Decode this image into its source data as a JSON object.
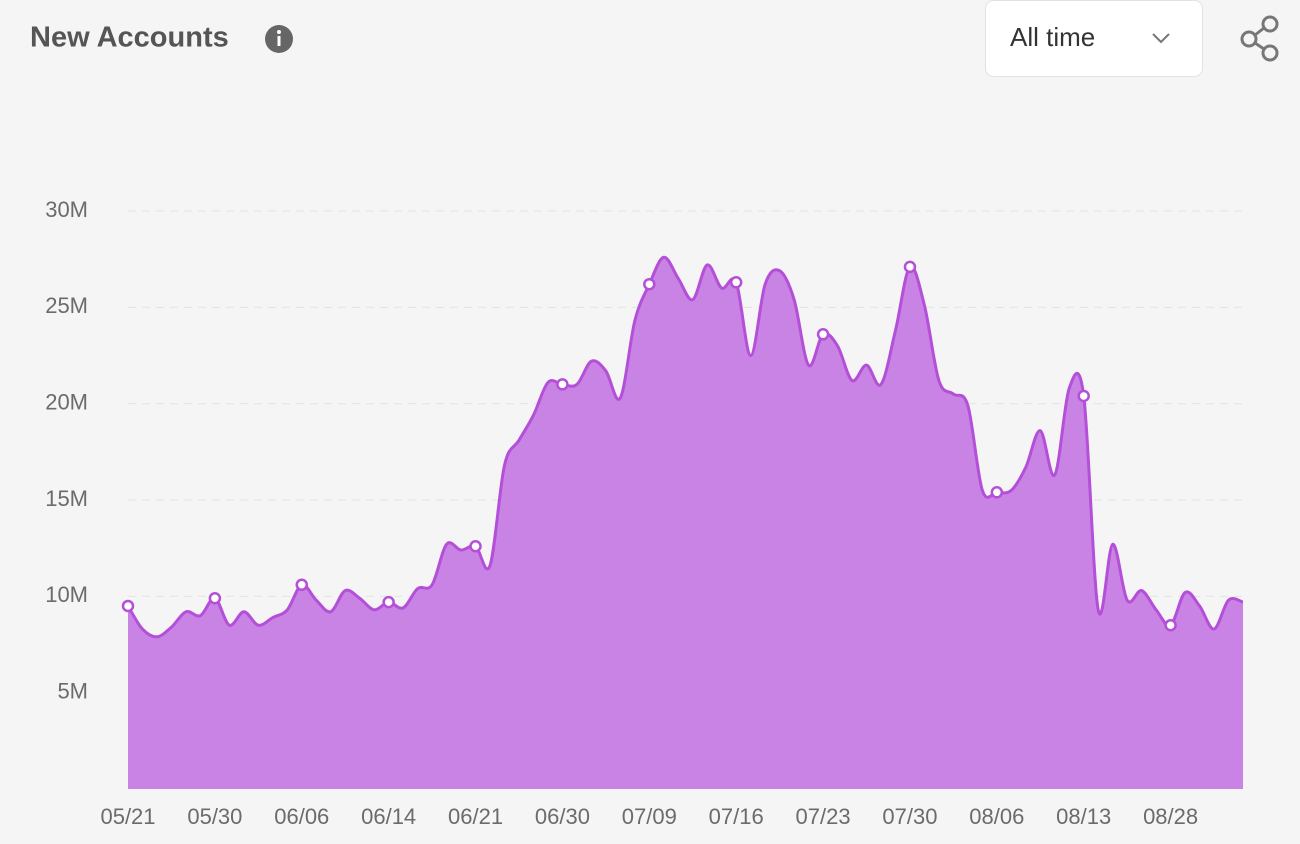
{
  "chart_data": {
    "type": "area",
    "title": "New Accounts",
    "categories": [
      "05/21",
      null,
      null,
      null,
      null,
      null,
      "05/30",
      null,
      null,
      null,
      null,
      null,
      "06/06",
      null,
      null,
      null,
      null,
      null,
      "06/14",
      null,
      null,
      null,
      null,
      null,
      "06/21",
      null,
      null,
      null,
      null,
      null,
      "06/30",
      null,
      null,
      null,
      null,
      null,
      "07/09",
      null,
      null,
      null,
      null,
      null,
      "07/16",
      null,
      null,
      null,
      null,
      null,
      "07/23",
      null,
      null,
      null,
      null,
      null,
      "07/30",
      null,
      null,
      null,
      null,
      null,
      "08/06",
      null,
      null,
      null,
      null,
      null,
      "08/13",
      null,
      null,
      null,
      null,
      null,
      "08/28",
      null,
      null,
      null,
      null,
      null
    ],
    "values": [
      9.5,
      8.3,
      7.9,
      8.4,
      9.2,
      9.0,
      9.9,
      8.5,
      9.2,
      8.5,
      8.9,
      9.3,
      10.6,
      9.8,
      9.2,
      10.3,
      9.9,
      9.3,
      9.7,
      9.4,
      10.4,
      10.6,
      12.7,
      12.4,
      12.6,
      11.6,
      16.8,
      18.1,
      19.4,
      21.1,
      21.0,
      21.0,
      22.2,
      21.7,
      20.3,
      24.3,
      26.2,
      27.6,
      26.5,
      25.4,
      27.2,
      26.0,
      26.3,
      22.5,
      26.2,
      26.9,
      25.4,
      22.0,
      23.6,
      23.0,
      21.2,
      22.0,
      21.0,
      23.8,
      27.1,
      25.1,
      21.2,
      20.5,
      19.9,
      15.5,
      15.4,
      15.5,
      16.7,
      18.6,
      16.3,
      20.8,
      20.4,
      9.3,
      12.7,
      9.8,
      10.3,
      9.3,
      8.5,
      10.2,
      9.5,
      8.3,
      9.8,
      9.7
    ],
    "color": "#b44fd8",
    "fill_color": "#c983e4",
    "ylim": [
      0,
      30
    ],
    "yticks": [
      {
        "value": 5,
        "label": "5M"
      },
      {
        "value": 10,
        "label": "10M"
      },
      {
        "value": 15,
        "label": "15M"
      },
      {
        "value": 20,
        "label": "20M"
      },
      {
        "value": 25,
        "label": "25M"
      },
      {
        "value": 30,
        "label": "30M"
      }
    ],
    "grid": true
  },
  "controls": {
    "range": "All time"
  }
}
